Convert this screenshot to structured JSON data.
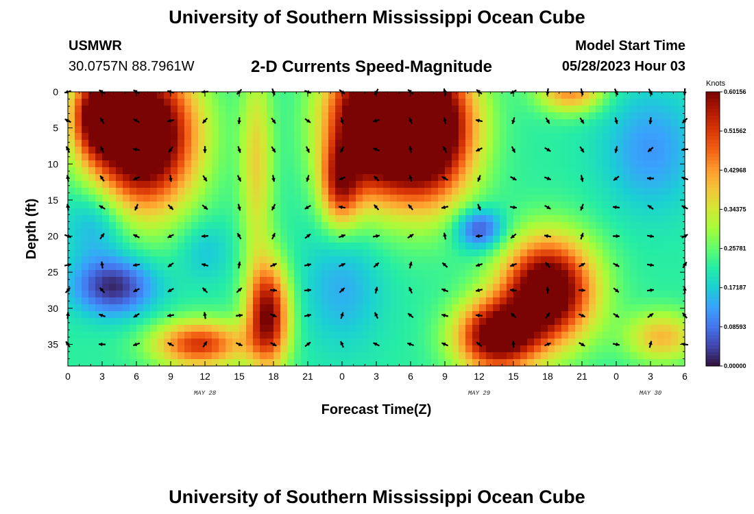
{
  "header": {
    "title": "University of Southern Mississippi Ocean Cube",
    "station": "USMWR",
    "coords": "30.0757N  88.7961W",
    "plot_title": "2-D Currents Speed-Magnitude",
    "model_label": "Model Start Time",
    "model_time": "05/28/2023 Hour 03"
  },
  "footer": {
    "title": "University of Southern Mississippi Ocean Cube"
  },
  "colors": {
    "scale": [
      "#30123b",
      "#4145ab",
      "#4675ed",
      "#39a2fc",
      "#1bcfd4",
      "#24eca6",
      "#61fc6c",
      "#a4fc3b",
      "#d1e834",
      "#f3c63a",
      "#fe9b2d",
      "#f36315",
      "#d93806",
      "#b11901",
      "#7a0403"
    ]
  },
  "chart_data": {
    "type": "heatmap",
    "title": "2-D Currents Speed-Magnitude",
    "xlabel": "Forecast Time(Z)",
    "ylabel": "Depth (ft)",
    "x_ticks": [
      "0",
      "3",
      "6",
      "9",
      "12",
      "15",
      "18",
      "21",
      "0",
      "3",
      "6",
      "9",
      "12",
      "15",
      "18",
      "21",
      "0",
      "3",
      "6"
    ],
    "x_hours": [
      0,
      3,
      6,
      9,
      12,
      15,
      18,
      21,
      24,
      27,
      30,
      33,
      36,
      39,
      42,
      45,
      48,
      51,
      54
    ],
    "day_labels": [
      {
        "label": "MAY 28",
        "hour": 12
      },
      {
        "label": "MAY 29",
        "hour": 36
      },
      {
        "label": "MAY 30",
        "hour": 51
      }
    ],
    "y_ticks": [
      0,
      5,
      10,
      15,
      20,
      25,
      30,
      35
    ],
    "ylim": [
      0,
      38
    ],
    "xlim": [
      0,
      54
    ],
    "colorbar": {
      "label": "Knots",
      "ticks": [
        "0.60156",
        "0.51562",
        "0.42968",
        "0.34375",
        "0.25781",
        "0.17187",
        "0.08593",
        "0.00000"
      ],
      "range": [
        0,
        0.60156
      ]
    },
    "vector_depths": [
      0,
      4,
      8,
      12,
      16,
      20,
      24,
      27.5,
      31,
      35
    ],
    "vector_hours": [
      0,
      3,
      6,
      9,
      12,
      15,
      18,
      21,
      24,
      27,
      30,
      33,
      36,
      39,
      42,
      45,
      48,
      51,
      54
    ],
    "blobs": [
      {
        "t": 6.5,
        "d": 6,
        "st": 3.2,
        "sd": 7,
        "a": 0.55
      },
      {
        "t": 2.5,
        "d": 3,
        "st": 1.5,
        "sd": 4,
        "a": 0.3
      },
      {
        "t": 26.5,
        "d": 4,
        "st": 2.8,
        "sd": 7,
        "a": 0.5
      },
      {
        "t": 23.8,
        "d": 13,
        "st": 1.2,
        "sd": 4,
        "a": 0.25
      },
      {
        "t": 31.5,
        "d": 5,
        "st": 2.8,
        "sd": 7,
        "a": 0.55
      },
      {
        "t": 42,
        "d": 27.5,
        "st": 2.8,
        "sd": 5,
        "a": 0.48
      },
      {
        "t": 37.5,
        "d": 34,
        "st": 2.5,
        "sd": 3.5,
        "a": 0.42
      },
      {
        "t": 17.5,
        "d": 31,
        "st": 1.3,
        "sd": 5,
        "a": 0.38
      },
      {
        "t": 11.5,
        "d": 35,
        "st": 2.8,
        "sd": 2.3,
        "a": 0.3
      },
      {
        "t": 44,
        "d": 0,
        "st": 2,
        "sd": 2,
        "a": 0.22
      },
      {
        "t": 52,
        "d": 34,
        "st": 2.2,
        "sd": 2.5,
        "a": 0.18
      },
      {
        "t": 16.5,
        "d": 10,
        "st": 1,
        "sd": 10,
        "a": 0.15
      },
      {
        "t": 4,
        "d": 27,
        "st": 2.5,
        "sd": 2.8,
        "a": -0.2
      },
      {
        "t": 2.5,
        "d": 18,
        "st": 2,
        "sd": 4,
        "a": -0.1
      },
      {
        "t": 36,
        "d": 19,
        "st": 1.5,
        "sd": 2,
        "a": -0.18
      },
      {
        "t": 24,
        "d": 27,
        "st": 2.5,
        "sd": 6,
        "a": -0.08
      },
      {
        "t": 51,
        "d": 8,
        "st": 3,
        "sd": 6,
        "a": -0.1
      },
      {
        "t": 12,
        "d": 22,
        "st": 1.6,
        "sd": 3,
        "a": -0.06
      }
    ],
    "base_speed": 0.22
  }
}
